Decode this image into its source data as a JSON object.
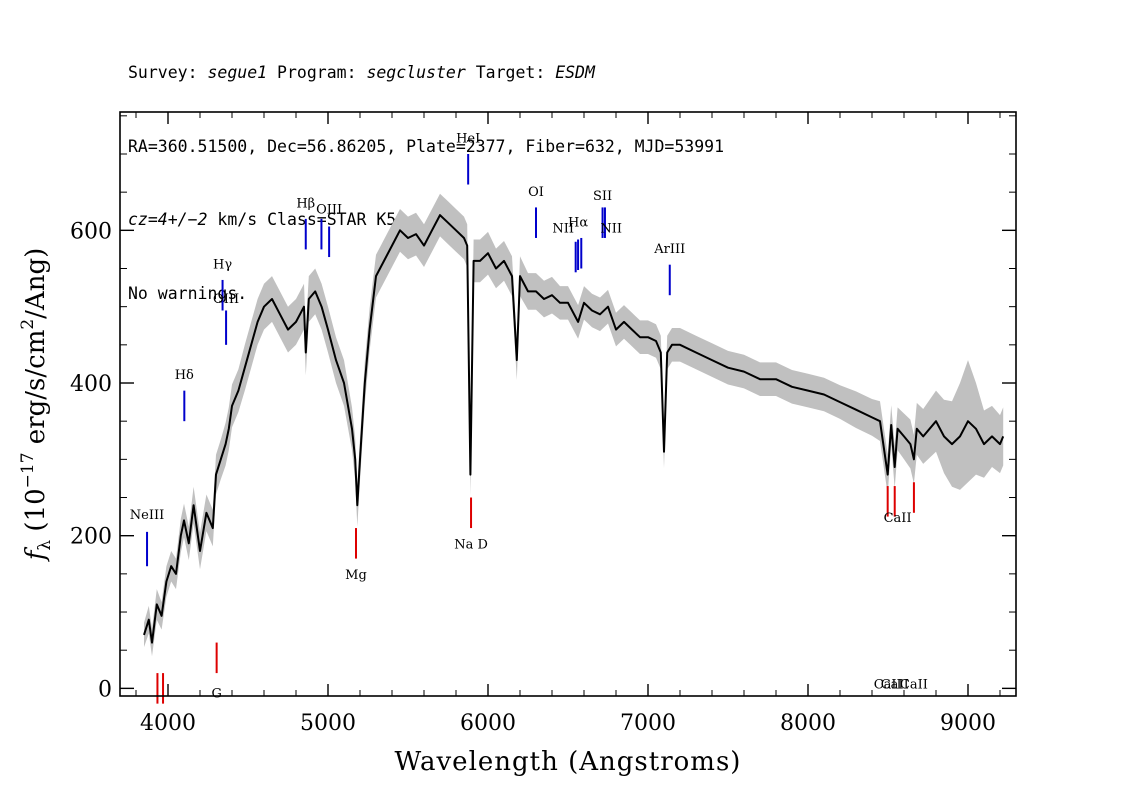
{
  "header": {
    "line1": {
      "survey_label": "Survey: ",
      "survey": "segue1",
      "program_label": " Program: ",
      "program": "segcluster",
      "target_label": " Target: ",
      "target": "ESDM"
    },
    "line2": "RA=360.51500, Dec=56.86205, Plate=2377, Fiber=632, MJD=53991",
    "line3": {
      "cz": "cz=4+/−2",
      "rest": " km/s Class=STAR K5"
    },
    "line4": "No warnings."
  },
  "chart_data": {
    "type": "line",
    "title": "",
    "xlabel": "Wavelength (Angstroms)",
    "ylabel_parts": {
      "f": "f",
      "lambda": "λ",
      "open": " (10",
      "exp1": "−17",
      "mid": " erg/s/cm",
      "exp2": "2",
      "close": "/Ang)"
    },
    "xlim": [
      3700,
      9300
    ],
    "ylim": [
      -10,
      755
    ],
    "x_ticks": [
      4000,
      5000,
      6000,
      7000,
      8000,
      9000
    ],
    "y_ticks": [
      0,
      200,
      400,
      600
    ],
    "x_tick_labels": [
      "4000",
      "5000",
      "6000",
      "7000",
      "8000",
      "9000"
    ],
    "y_tick_labels": [
      "0",
      "200",
      "400",
      "600"
    ],
    "colors": {
      "flux": "#000000",
      "error_band": "#c0c0c0",
      "emission": "#0000cc",
      "absorption": "#dd0000"
    },
    "series": [
      {
        "name": "flux",
        "x": [
          3850,
          3880,
          3900,
          3930,
          3960,
          3990,
          4020,
          4050,
          4080,
          4100,
          4130,
          4160,
          4200,
          4240,
          4280,
          4300,
          4330,
          4360,
          4380,
          4400,
          4440,
          4480,
          4520,
          4560,
          4600,
          4650,
          4700,
          4750,
          4800,
          4850,
          4861,
          4880,
          4920,
          4960,
          5000,
          5050,
          5100,
          5150,
          5170,
          5183,
          5200,
          5230,
          5260,
          5300,
          5350,
          5400,
          5450,
          5500,
          5550,
          5600,
          5650,
          5700,
          5750,
          5800,
          5850,
          5870,
          5890,
          5910,
          5950,
          6000,
          6050,
          6100,
          6150,
          6180,
          6200,
          6250,
          6300,
          6350,
          6400,
          6450,
          6500,
          6563,
          6600,
          6650,
          6700,
          6750,
          6800,
          6850,
          6900,
          6950,
          7000,
          7050,
          7080,
          7100,
          7120,
          7150,
          7200,
          7300,
          7400,
          7500,
          7600,
          7700,
          7800,
          7900,
          8000,
          8100,
          8200,
          8300,
          8400,
          8450,
          8498,
          8520,
          8542,
          8560,
          8600,
          8640,
          8662,
          8680,
          8720,
          8800,
          8850,
          8900,
          8950,
          9000,
          9050,
          9100,
          9150,
          9200,
          9220
        ],
        "y": [
          70,
          90,
          60,
          110,
          95,
          140,
          160,
          150,
          200,
          220,
          190,
          240,
          180,
          230,
          210,
          280,
          300,
          320,
          340,
          370,
          390,
          420,
          450,
          480,
          500,
          510,
          490,
          470,
          480,
          500,
          440,
          510,
          520,
          500,
          470,
          430,
          400,
          340,
          300,
          240,
          300,
          400,
          470,
          540,
          560,
          580,
          600,
          590,
          595,
          580,
          600,
          620,
          610,
          600,
          590,
          580,
          280,
          560,
          560,
          570,
          550,
          560,
          540,
          430,
          540,
          520,
          520,
          510,
          515,
          505,
          505,
          480,
          505,
          495,
          490,
          500,
          470,
          480,
          470,
          460,
          460,
          455,
          440,
          310,
          440,
          450,
          450,
          440,
          430,
          420,
          415,
          405,
          405,
          395,
          390,
          385,
          375,
          365,
          355,
          350,
          280,
          345,
          290,
          340,
          330,
          320,
          300,
          340,
          330,
          350,
          330,
          320,
          330,
          350,
          340,
          320,
          330,
          320,
          330
        ]
      }
    ],
    "error_band_halfwidth": [
      16,
      18,
      18,
      20,
      18,
      20,
      20,
      20,
      22,
      22,
      22,
      24,
      24,
      24,
      24,
      26,
      26,
      28,
      28,
      28,
      28,
      30,
      30,
      30,
      30,
      30,
      30,
      30,
      30,
      30,
      30,
      30,
      30,
      30,
      30,
      30,
      30,
      28,
      28,
      28,
      28,
      28,
      28,
      28,
      28,
      28,
      28,
      28,
      28,
      28,
      28,
      28,
      28,
      28,
      28,
      28,
      28,
      28,
      28,
      28,
      26,
      26,
      26,
      26,
      26,
      24,
      24,
      24,
      24,
      22,
      22,
      22,
      22,
      22,
      22,
      22,
      22,
      22,
      22,
      22,
      22,
      22,
      22,
      22,
      22,
      22,
      22,
      22,
      22,
      22,
      22,
      22,
      22,
      22,
      22,
      22,
      22,
      24,
      24,
      26,
      26,
      26,
      28,
      28,
      30,
      32,
      32,
      34,
      36,
      40,
      48,
      56,
      70,
      80,
      60,
      44,
      40,
      38,
      38
    ],
    "emission_lines": [
      {
        "label": "NeIII",
        "wavelength": 3869,
        "y_bottom": 160,
        "y_top": 205,
        "label_y": 222
      },
      {
        "label": "Hδ",
        "wavelength": 4102,
        "y_bottom": 350,
        "y_top": 390,
        "label_y": 405
      },
      {
        "label": "Hγ",
        "wavelength": 4341,
        "y_bottom": 495,
        "y_top": 535,
        "label_y": 550
      },
      {
        "label": "OIII",
        "wavelength": 4363,
        "y_bottom": 450,
        "y_top": 495,
        "label_y": 505
      },
      {
        "label": "Hβ",
        "wavelength": 4861,
        "y_bottom": 575,
        "y_top": 615,
        "label_y": 630
      },
      {
        "label": "OIII",
        "wavelength": 4959,
        "y_bottom": 575,
        "y_top": 615,
        "label_y": 0
      },
      {
        "label": "OIII",
        "wavelength": 5007,
        "y_bottom": 565,
        "y_top": 605,
        "label_y": 622
      },
      {
        "label": "HeI",
        "wavelength": 5876,
        "y_bottom": 660,
        "y_top": 700,
        "label_y": 715
      },
      {
        "label": "OI",
        "wavelength": 6300,
        "y_bottom": 590,
        "y_top": 630,
        "label_y": 645
      },
      {
        "label": "NII",
        "wavelength": 6548,
        "y_bottom": 545,
        "y_top": 585,
        "label_y": 0
      },
      {
        "label": "Hα",
        "wavelength": 6563,
        "y_bottom": 548,
        "y_top": 588,
        "label_y": 605
      },
      {
        "label": "NII",
        "wavelength": 6583,
        "y_bottom": 550,
        "y_top": 590,
        "label_y": 0
      },
      {
        "label": "SII",
        "wavelength": 6716,
        "y_bottom": 590,
        "y_top": 630,
        "label_y": 640
      },
      {
        "label": "SII",
        "wavelength": 6731,
        "y_bottom": 590,
        "y_top": 630,
        "label_y": 0
      },
      {
        "label": "ArIII",
        "wavelength": 7136,
        "y_bottom": 515,
        "y_top": 555,
        "label_y": 570
      }
    ],
    "emission_extra_labels": [
      {
        "label": "NII",
        "wavelength": 6470,
        "label_y": 597
      },
      {
        "label": "NII",
        "wavelength": 6770,
        "label_y": 597
      }
    ],
    "absorption_lines": [
      {
        "label": "",
        "wavelength": 3934,
        "y_bottom": -20,
        "y_top": 20,
        "label_y": 0
      },
      {
        "label": "",
        "wavelength": 3969,
        "y_bottom": -20,
        "y_top": 20,
        "label_y": 0
      },
      {
        "label": "G",
        "wavelength": 4304,
        "y_bottom": 20,
        "y_top": 60,
        "label_y": -12
      },
      {
        "label": "Mg",
        "wavelength": 5175,
        "y_bottom": 170,
        "y_top": 210,
        "label_y": 143
      },
      {
        "label": "Na D",
        "wavelength": 5894,
        "y_bottom": 210,
        "y_top": 250,
        "label_y": 183
      },
      {
        "label": "CaII",
        "wavelength": 8498,
        "y_bottom": 225,
        "y_top": 265,
        "label_y": 0
      },
      {
        "label": "CaII",
        "wavelength": 8542,
        "y_bottom": 225,
        "y_top": 265,
        "label_y": 0
      },
      {
        "label": "CaII",
        "wavelength": 8662,
        "y_bottom": 230,
        "y_top": 270,
        "label_y": 0
      }
    ],
    "absorption_group_label": {
      "label": "CaII",
      "wavelength": 8560,
      "label_y": 218
    }
  }
}
